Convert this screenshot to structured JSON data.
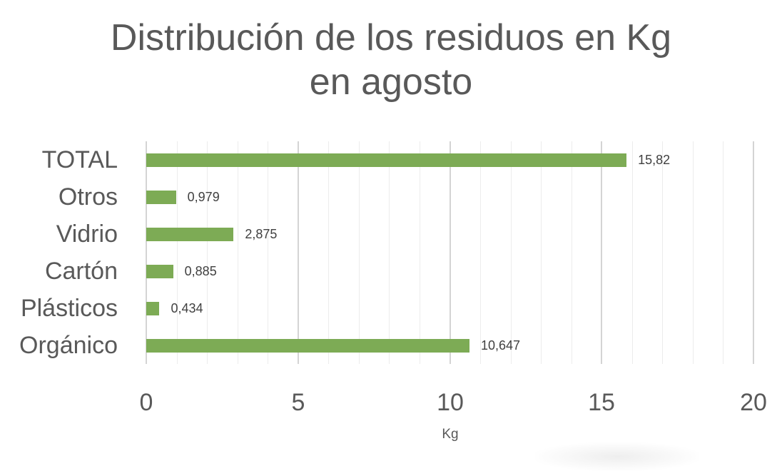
{
  "chart_data": {
    "type": "bar",
    "orientation": "horizontal",
    "title": "Distribución de los residuos en Kg en agosto",
    "title_lines": [
      "Distribución de los residuos en Kg",
      "en agosto"
    ],
    "categories": [
      "TOTAL",
      "Otros",
      "Vidrio",
      "Cartón",
      "Plásticos",
      "Orgánico"
    ],
    "values": [
      15.82,
      0.979,
      2.875,
      0.885,
      0.434,
      10.647
    ],
    "value_labels": [
      "15,82",
      "0,979",
      "2,875",
      "0,885",
      "0,434",
      "10,647"
    ],
    "xlabel": "Kg",
    "ylabel": "",
    "xlim": [
      0,
      20
    ],
    "x_ticks": [
      "0",
      "5",
      "10",
      "15",
      "20"
    ],
    "grid": true,
    "legend": "none",
    "bar_color": "#7dab55"
  }
}
